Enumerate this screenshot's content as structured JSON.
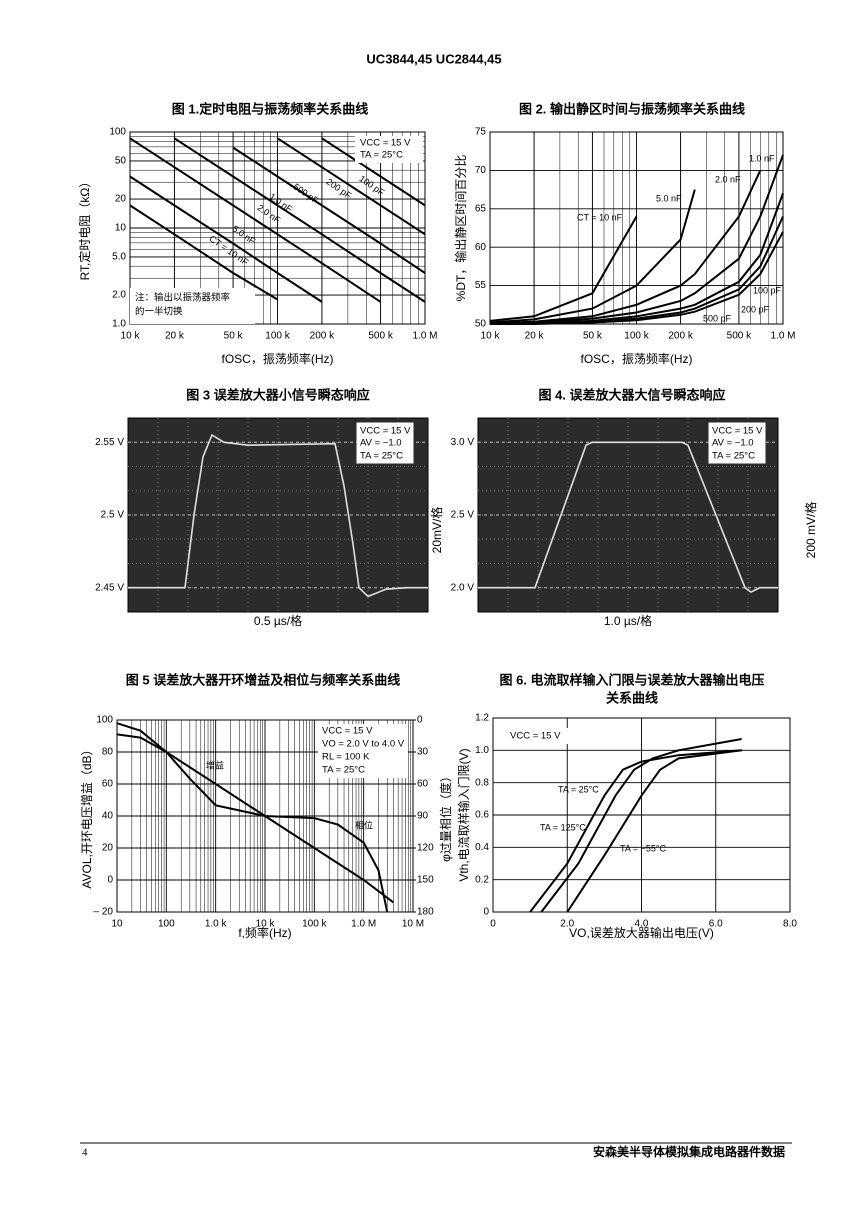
{
  "header": {
    "title": "UC3844,45 UC2844,45"
  },
  "footer": {
    "page": "4",
    "publisher": "安森美半导体模拟集成电路器件数据"
  },
  "chart_data": [
    {
      "type": "line",
      "title": "图 1.定时电阻与振荡频率关系曲线",
      "x_label": "fOSC，振荡频率(Hz)",
      "y_label": "RT,定时电阻（kΩ）",
      "xlog": true,
      "ylog": true,
      "grid": true,
      "x": [
        10000,
        20000,
        50000,
        100000,
        200000,
        500000,
        1000000
      ],
      "xlim": [
        10000,
        1000000
      ],
      "ylim": [
        1,
        100
      ],
      "xticks": [
        {
          "value": 10000,
          "label": "10 k"
        },
        {
          "value": 20000,
          "label": "20 k"
        },
        {
          "value": 50000,
          "label": "50 k"
        },
        {
          "value": 100000,
          "label": "100 k"
        },
        {
          "value": 200000,
          "label": "200 k"
        },
        {
          "value": 500000,
          "label": "500 k"
        },
        {
          "value": 1000000,
          "label": "1.0 M"
        }
      ],
      "yticks": [
        {
          "value": 1,
          "label": "1.0"
        },
        {
          "value": 2,
          "label": "2.0"
        },
        {
          "value": 5,
          "label": "5.0"
        },
        10,
        20,
        50,
        100
      ],
      "series": [
        {
          "name": "CT = 10 nF",
          "color": "#000000",
          "values": [
            17.2,
            8.6,
            3.4,
            1.8,
            null,
            null,
            null
          ]
        },
        {
          "name": "5.0 nF",
          "color": "#000000",
          "values": [
            34.4,
            17.2,
            6.9,
            3.4,
            1.7,
            null,
            null
          ]
        },
        {
          "name": "2.0 nF",
          "color": "#000000",
          "values": [
            86,
            43,
            17.2,
            8.6,
            4.3,
            1.7,
            null
          ]
        },
        {
          "name": "1.0 nF",
          "color": "#000000",
          "values": [
            null,
            86,
            34.4,
            17.2,
            8.6,
            3.4,
            1.7
          ]
        },
        {
          "name": "500 pF",
          "color": "#000000",
          "values": [
            null,
            null,
            68.8,
            34.4,
            17.2,
            6.9,
            3.4
          ]
        },
        {
          "name": "200 pF",
          "color": "#000000",
          "values": [
            null,
            null,
            null,
            86,
            43,
            17.2,
            8.6
          ]
        },
        {
          "name": "100 pF",
          "color": "#000000",
          "values": [
            null,
            null,
            null,
            null,
            86,
            34.4,
            17.2
          ]
        }
      ],
      "annotations": [
        "VCC = 15 V",
        "TA = 25°C",
        "注：输出以振荡器频率",
        "的一半切换"
      ]
    },
    {
      "type": "line",
      "title": "图 2. 输出静区时间与振荡频率关系曲线",
      "x_label": "fOSC，振荡频率(Hz)",
      "y_label": "%DT，输出静区时间百分比",
      "xlog": true,
      "grid": true,
      "x": [
        10000,
        20000,
        50000,
        100000,
        200000,
        250000,
        500000,
        700000,
        1000000
      ],
      "xlim": [
        10000,
        1000000
      ],
      "ylim": [
        50,
        75
      ],
      "xticks": [
        {
          "value": 10000,
          "label": "10 k"
        },
        {
          "value": 20000,
          "label": "20 k"
        },
        {
          "value": 50000,
          "label": "50 k"
        },
        {
          "value": 100000,
          "label": "100 k"
        },
        {
          "value": 200000,
          "label": "200 k"
        },
        {
          "value": 500000,
          "label": "500 k"
        },
        {
          "value": 1000000,
          "label": "1.0 M"
        }
      ],
      "yticks": [
        50,
        55,
        60,
        65,
        70,
        75
      ],
      "series": [
        {
          "name": "CT = 10 nF",
          "color": "#000000",
          "values": [
            50.4,
            51,
            54,
            64,
            null,
            null,
            null,
            null,
            null
          ]
        },
        {
          "name": "5.0 nF",
          "color": "#000000",
          "values": [
            50.2,
            50.6,
            52,
            55,
            61,
            67.5,
            null,
            null,
            null
          ]
        },
        {
          "name": "2.0 nF",
          "color": "#000000",
          "values": [
            50.1,
            50.3,
            51,
            52.5,
            55,
            56.5,
            64,
            70,
            null
          ]
        },
        {
          "name": "1.0 nF",
          "color": "#000000",
          "values": [
            50.1,
            50.2,
            50.7,
            51.5,
            53,
            54,
            58.5,
            64,
            72
          ]
        },
        {
          "name": "500 pF",
          "color": "#000000",
          "values": [
            50,
            50.1,
            50.4,
            51,
            52,
            52.5,
            55.5,
            59,
            67
          ]
        },
        {
          "name": "200 pF",
          "color": "#000000",
          "values": [
            50,
            50.1,
            50.3,
            50.7,
            51.5,
            52,
            54.5,
            57.5,
            64
          ]
        },
        {
          "name": "100 pF",
          "color": "#000000",
          "values": [
            50,
            50,
            50.2,
            50.5,
            51.2,
            51.6,
            53.8,
            56.5,
            62
          ]
        }
      ],
      "annotations": []
    },
    {
      "type": "scope",
      "title": "图 3  误差放大器小信号瞬态响应",
      "x_label": "0.5 µs/格",
      "scale_label": "20mV/格",
      "background": "#2b2b2b",
      "grid": true,
      "x": [
        0,
        1.9,
        2.2,
        2.5,
        2.8,
        3.2,
        4,
        6.9,
        7.2,
        7.5,
        7.7,
        8,
        8.6,
        9.3,
        10
      ],
      "xlim": [
        0,
        10
      ],
      "ylim": [
        2.4333,
        2.5667
      ],
      "yticks": [
        {
          "value": 2.45,
          "label": "2.45 V"
        },
        {
          "value": 2.5,
          "label": "2.5 V"
        },
        {
          "value": 2.55,
          "label": "2.55 V"
        }
      ],
      "series": [
        {
          "name": "",
          "color": "#e0e0e0",
          "values": [
            2.45,
            2.45,
            2.5,
            2.54,
            2.555,
            2.55,
            2.548,
            2.549,
            2.52,
            2.48,
            2.45,
            2.444,
            2.449,
            2.45,
            2.45
          ]
        }
      ],
      "annotations": [
        "VCC = 15 V",
        "AV = −1.0",
        "TA = 25°C"
      ]
    },
    {
      "type": "scope",
      "title": "图 4.  误差放大器大信号瞬态响应",
      "x_label": "1.0 µs/格",
      "scale_label": "200 mV/格",
      "background": "#2b2b2b",
      "grid": true,
      "x": [
        0,
        1.9,
        3.6,
        3.8,
        6.8,
        7.0,
        8.9,
        9.1,
        9.4,
        10
      ],
      "xlim": [
        0,
        10
      ],
      "ylim": [
        1.8333,
        3.1667
      ],
      "yticks": [
        {
          "value": 2,
          "label": "2.0 V"
        },
        {
          "value": 2.5,
          "label": "2.5 V"
        },
        {
          "value": 3,
          "label": "3.0 V"
        }
      ],
      "series": [
        {
          "name": "",
          "color": "#e0e0e0",
          "values": [
            2,
            2,
            2.98,
            3,
            3,
            2.98,
            2,
            1.97,
            2,
            2
          ]
        }
      ],
      "annotations": [
        "VCC = 15 V",
        "AV = −1.0",
        "TA = 25°C"
      ]
    },
    {
      "type": "line",
      "title": "图 5  误差放大器开环增益及相位与频率关系曲线",
      "x_label": "f,频率(Hz)",
      "y_label": "AVOL,开环电压增益（dB）",
      "y2_label": "φ过量相位（度）",
      "xlog": true,
      "grid": true,
      "xlim": [
        10,
        10000000
      ],
      "ylim": [
        -20,
        100
      ],
      "y2lim": [
        180,
        0
      ],
      "xticks": [
        10,
        100,
        {
          "value": 1000,
          "label": "1.0 k"
        },
        {
          "value": 10000,
          "label": "10 k"
        },
        {
          "value": 100000,
          "label": "100 k"
        },
        {
          "value": 1000000,
          "label": "1.0 M"
        },
        {
          "value": 10000000,
          "label": "10 M"
        }
      ],
      "yticks": [
        {
          "value": -20,
          "label": "– 20"
        },
        0,
        20,
        40,
        60,
        80,
        100
      ],
      "y2ticks": [
        0,
        30,
        60,
        90,
        120,
        150,
        180
      ],
      "series": [
        {
          "name": "增益",
          "color": "#000000",
          "x": [
            10,
            30,
            100,
            1000,
            10000,
            100000,
            1000000,
            4000000
          ],
          "values": [
            91,
            89,
            80,
            60,
            40,
            20,
            0,
            -14
          ]
        },
        {
          "name": "相位",
          "color": "#000000",
          "axis": "y2",
          "x": [
            10,
            30,
            100,
            300,
            1000,
            10000,
            100000,
            300000,
            1000000,
            2000000,
            3000000
          ],
          "values": [
            3,
            10,
            30,
            55,
            80,
            90,
            92,
            98,
            115,
            141,
            180
          ]
        }
      ],
      "annotations": [
        "VCC = 15 V",
        "VO = 2.0 V to 4.0 V",
        "RL = 100 K",
        "TA = 25°C"
      ]
    },
    {
      "type": "line",
      "title": [
        "图 6. 电流取样输入门限与误差放大器输出电压",
        "关系曲线"
      ],
      "x_label": "VO,误差放大器输出电压(V)",
      "y_label": "Vth,电流取样输入门限(V)",
      "grid": true,
      "xlim": [
        0,
        8
      ],
      "ylim": [
        0,
        1.2
      ],
      "xticks": [
        0,
        {
          "value": 2,
          "label": "2.0"
        },
        {
          "value": 4,
          "label": "4.0"
        },
        {
          "value": 6,
          "label": "6.0"
        },
        {
          "value": 8,
          "label": "8.0"
        }
      ],
      "yticks": [
        0,
        0.2,
        0.4,
        0.6,
        0.8,
        {
          "value": 1,
          "label": "1.0"
        },
        1.2
      ],
      "series": [
        {
          "name": "TA = 25°C",
          "color": "#000000",
          "x": [
            1.3,
            2.3,
            3.3,
            3.8,
            4.3,
            5,
            6.7
          ],
          "values": [
            0,
            0.3,
            0.72,
            0.88,
            0.95,
            1,
            1.07
          ]
        },
        {
          "name": "TA = 125°C",
          "color": "#000000",
          "x": [
            1,
            2,
            3,
            3.5,
            4,
            5,
            6.7
          ],
          "values": [
            0,
            0.3,
            0.72,
            0.88,
            0.93,
            0.97,
            1
          ]
        },
        {
          "name": "TA = −55°C",
          "color": "#000000",
          "x": [
            2,
            3,
            4,
            4.5,
            5,
            6.7
          ],
          "values": [
            0,
            0.35,
            0.72,
            0.88,
            0.95,
            1
          ]
        }
      ],
      "annotations": [
        "VCC = 15 V"
      ]
    }
  ]
}
